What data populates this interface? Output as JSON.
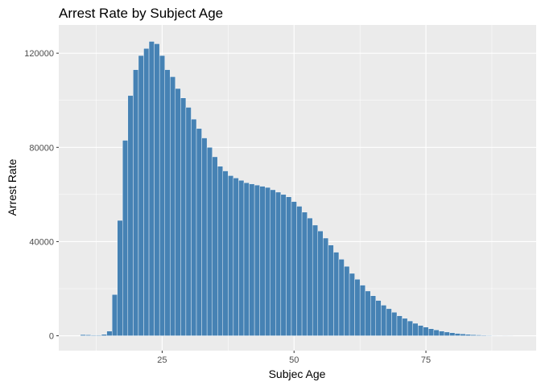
{
  "chart_data": {
    "type": "bar",
    "title": "Arrest Rate by Subject Age",
    "xlabel": "Subjec Age",
    "ylabel": "Arrest Rate",
    "x_ticks": [
      25,
      50,
      75
    ],
    "y_ticks": [
      0,
      40000,
      80000,
      120000
    ],
    "y_tick_labels": [
      "0",
      "40000",
      "80000",
      "120000"
    ],
    "x_tick_labels": [
      "25",
      "50",
      "75"
    ],
    "xlim": [
      5.4,
      95.9
    ],
    "ylim": [
      -6300,
      132000
    ],
    "grid": true,
    "bar_color": "#4682B4",
    "panel_color": "#EBEBEB",
    "x": [
      10,
      11,
      12,
      13,
      14,
      15,
      16,
      17,
      18,
      19,
      20,
      21,
      22,
      23,
      24,
      25,
      26,
      27,
      28,
      29,
      30,
      31,
      32,
      33,
      34,
      35,
      36,
      37,
      38,
      39,
      40,
      41,
      42,
      43,
      44,
      45,
      46,
      47,
      48,
      49,
      50,
      51,
      52,
      53,
      54,
      55,
      56,
      57,
      58,
      59,
      60,
      61,
      62,
      63,
      64,
      65,
      66,
      67,
      68,
      69,
      70,
      71,
      72,
      73,
      74,
      75,
      76,
      77,
      78,
      79,
      80,
      81,
      82,
      83,
      84,
      85,
      86,
      87,
      88,
      89,
      90,
      91
    ],
    "values": [
      500,
      400,
      300,
      300,
      600,
      2000,
      17500,
      49000,
      83000,
      102000,
      113000,
      119000,
      122000,
      125000,
      124000,
      119000,
      113000,
      110000,
      105000,
      101000,
      97000,
      92000,
      88000,
      84000,
      80000,
      76000,
      72000,
      70000,
      68000,
      67000,
      66000,
      65000,
      64500,
      64000,
      63500,
      63000,
      62000,
      61000,
      60000,
      59000,
      57000,
      55000,
      52500,
      50000,
      47000,
      44500,
      41500,
      38500,
      35500,
      32500,
      29500,
      26500,
      24000,
      21500,
      19000,
      17000,
      15000,
      13000,
      11500,
      10000,
      8500,
      7400,
      6300,
      5300,
      4400,
      3700,
      3000,
      2500,
      2000,
      1600,
      1300,
      1000,
      800,
      600,
      450,
      350,
      250,
      200,
      150,
      100,
      60,
      30
    ]
  }
}
